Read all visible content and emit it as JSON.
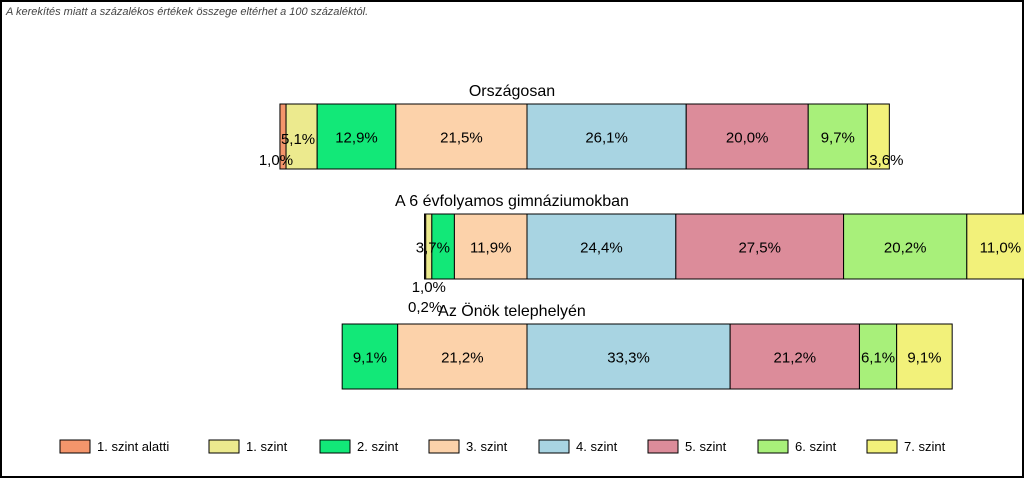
{
  "note": "A kerekítés miatt a  százalékos értékek összege eltérhet a 100 százaléktól.",
  "chart_data": {
    "type": "bar",
    "orientation": "horizontal-stacked-centered",
    "legend_position": "bottom",
    "categories": [
      "Országosan",
      "A 6 évfolyamos gimnáziumokban",
      "Az Önök telephelyén"
    ],
    "series": [
      {
        "name": "1. szint alatti",
        "color": "#f4956b",
        "values": [
          1.0,
          0.2,
          0
        ]
      },
      {
        "name": "1. szint",
        "color": "#ecea8e",
        "values": [
          5.1,
          1.0,
          0
        ]
      },
      {
        "name": "2. szint",
        "color": "#12e878",
        "values": [
          12.9,
          3.7,
          9.1
        ]
      },
      {
        "name": "3. szint",
        "color": "#fcd2aa",
        "values": [
          21.5,
          11.9,
          21.2
        ]
      },
      {
        "name": "4. szint",
        "color": "#a8d4e2",
        "values": [
          26.1,
          24.4,
          33.3
        ]
      },
      {
        "name": "5. szint",
        "color": "#dc8c9a",
        "values": [
          20.0,
          27.5,
          21.2
        ]
      },
      {
        "name": "6. szint",
        "color": "#a8f07a",
        "values": [
          9.7,
          20.2,
          6.1
        ]
      },
      {
        "name": "7. szint",
        "color": "#f2f17a",
        "values": [
          3.6,
          11.0,
          9.1
        ]
      }
    ],
    "labels": [
      [
        "1,0%",
        "5,1%",
        "12,9%",
        "21,5%",
        "26,1%",
        "20,0%",
        "9,7%",
        "3,6%"
      ],
      [
        "0,2%",
        "1,0%",
        "3,7%",
        "11,9%",
        "24,4%",
        "27,5%",
        "20,2%",
        "11,0%"
      ],
      [
        "",
        "",
        "9,1%",
        "21,2%",
        "33,3%",
        "21,2%",
        "6,1%",
        "9,1%"
      ]
    ]
  }
}
